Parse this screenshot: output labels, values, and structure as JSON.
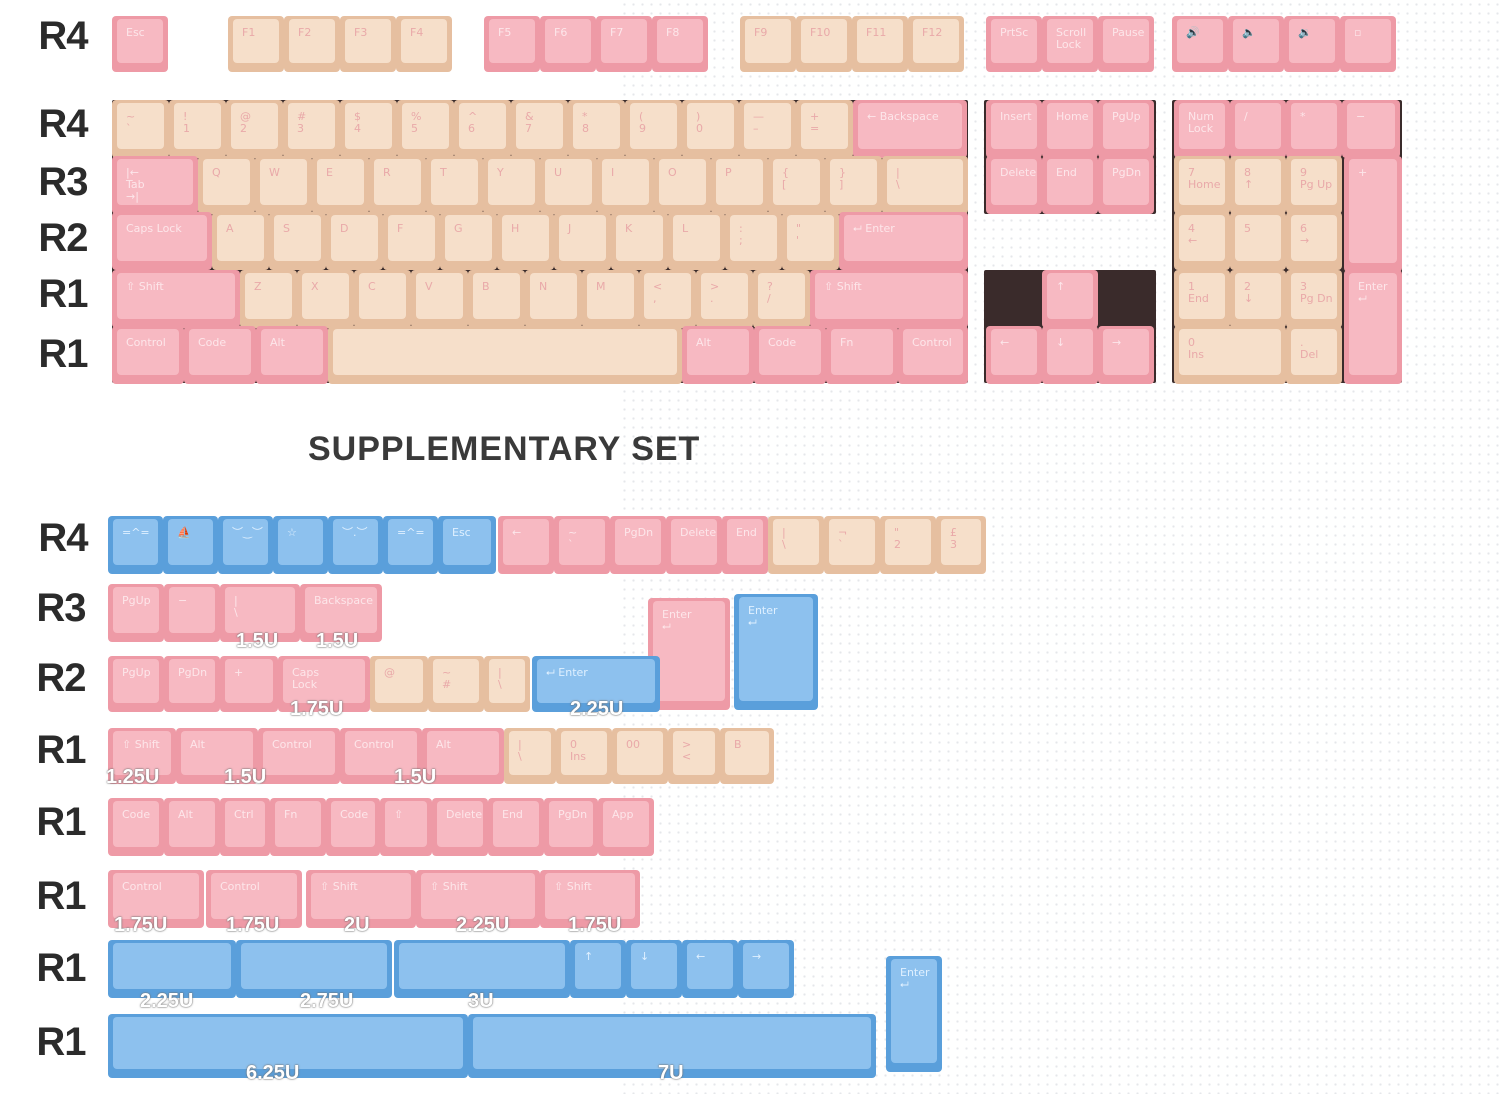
{
  "title": "SUPPLEMENTARY SET",
  "colors": {
    "pink": "#f7b9c2",
    "cream": "#f6dfca",
    "blue": "#8dc1ee"
  },
  "row_labels_main": [
    "R4",
    "R4",
    "R3",
    "R2",
    "R1",
    "R1"
  ],
  "row_labels_supp": [
    "R4",
    "R3",
    "R2",
    "R1",
    "R1",
    "R1",
    "R1",
    "R1"
  ],
  "main_keys": [
    [
      "Esc",
      "F1",
      "F2",
      "F3",
      "F4",
      "F5",
      "F6",
      "F7",
      "F8",
      "F9",
      "F10",
      "F11",
      "F12",
      "PrtSc",
      "Scroll\nLock",
      "Pause",
      "🔊",
      "🔈",
      "🔉",
      "▫"
    ],
    [
      "~\n`",
      "!\n1",
      "@\n2",
      "#\n3",
      "$\n4",
      "%\n5",
      "^\n6",
      "&\n7",
      "*\n8",
      "(\n9",
      ")\n0",
      "—\n–",
      "+\n=",
      "← Backspace",
      "Insert",
      "Home",
      "PgUp",
      "Num\nLock",
      "/",
      "*",
      "−"
    ],
    [
      "|←\nTab\n→|",
      "Q",
      "W",
      "E",
      "R",
      "T",
      "Y",
      "U",
      "I",
      "O",
      "P",
      "{\n[",
      "}\n]",
      "|\n\\",
      "Delete",
      "End",
      "PgDn",
      "7\nHome",
      "8\n↑",
      "9\nPg Up",
      "+"
    ],
    [
      "Caps Lock",
      "A",
      "S",
      "D",
      "F",
      "G",
      "H",
      "J",
      "K",
      "L",
      ":\n;",
      "\"\n'",
      "⮠ Enter",
      "4\n←",
      "5",
      "6\n→"
    ],
    [
      "⇧ Shift",
      "Z",
      "X",
      "C",
      "V",
      "B",
      "N",
      "M",
      "<\n,",
      ">\n.",
      "?\n/",
      "⇧ Shift",
      "↑",
      "1\nEnd",
      "2\n↓",
      "3\nPg Dn",
      "Enter\n⮠"
    ],
    [
      "Control",
      "Code",
      "Alt",
      "",
      "Alt",
      "Code",
      "Fn",
      "Control",
      "←",
      "↓",
      "→",
      "0\nIns",
      ".\nDel"
    ]
  ],
  "supp_keys": [
    [
      "=^=",
      "⛵",
      "︶‿︶",
      "☆",
      "︶.︶",
      "=^=",
      "Esc",
      "←",
      "~\n`",
      "PgDn",
      "Delete",
      "End",
      "|\n\\",
      "¬\n`",
      "\"\n2",
      "£\n3"
    ],
    [
      "PgUp",
      "−",
      "|\n\\",
      "Backspace",
      "Enter\n⮠",
      "Enter\n⮠"
    ],
    [
      "PgUp",
      "PgDn",
      "+",
      "Caps\nLock",
      "@",
      "~\n#",
      "|\n\\",
      "⮠ Enter"
    ],
    [
      "⇧ Shift",
      "Alt",
      "Control",
      "Control",
      "Alt",
      "|\n\\",
      "0\nIns",
      "00",
      ">\n<",
      "B"
    ],
    [
      "Code",
      "Alt",
      "Ctrl",
      "Fn",
      "Code",
      "⇧",
      "Delete",
      "End",
      "PgDn",
      "App"
    ],
    [
      "Control",
      "Control",
      "⇧ Shift",
      "⇧ Shift",
      "⇧ Shift"
    ],
    [
      "",
      "",
      "",
      "↑",
      "↓",
      "←",
      "→",
      "Enter\n⮠"
    ],
    [
      "",
      ""
    ]
  ],
  "sizes": [
    "1.5U",
    "1.5U",
    "1.75U",
    "2.25U",
    "1.25U",
    "1.5U",
    "1.5U",
    "1.75U",
    "1.75U",
    "2U",
    "2.25U",
    "1.75U",
    "2.25U",
    "2.75U",
    "3U",
    "6.25U",
    "7U"
  ]
}
